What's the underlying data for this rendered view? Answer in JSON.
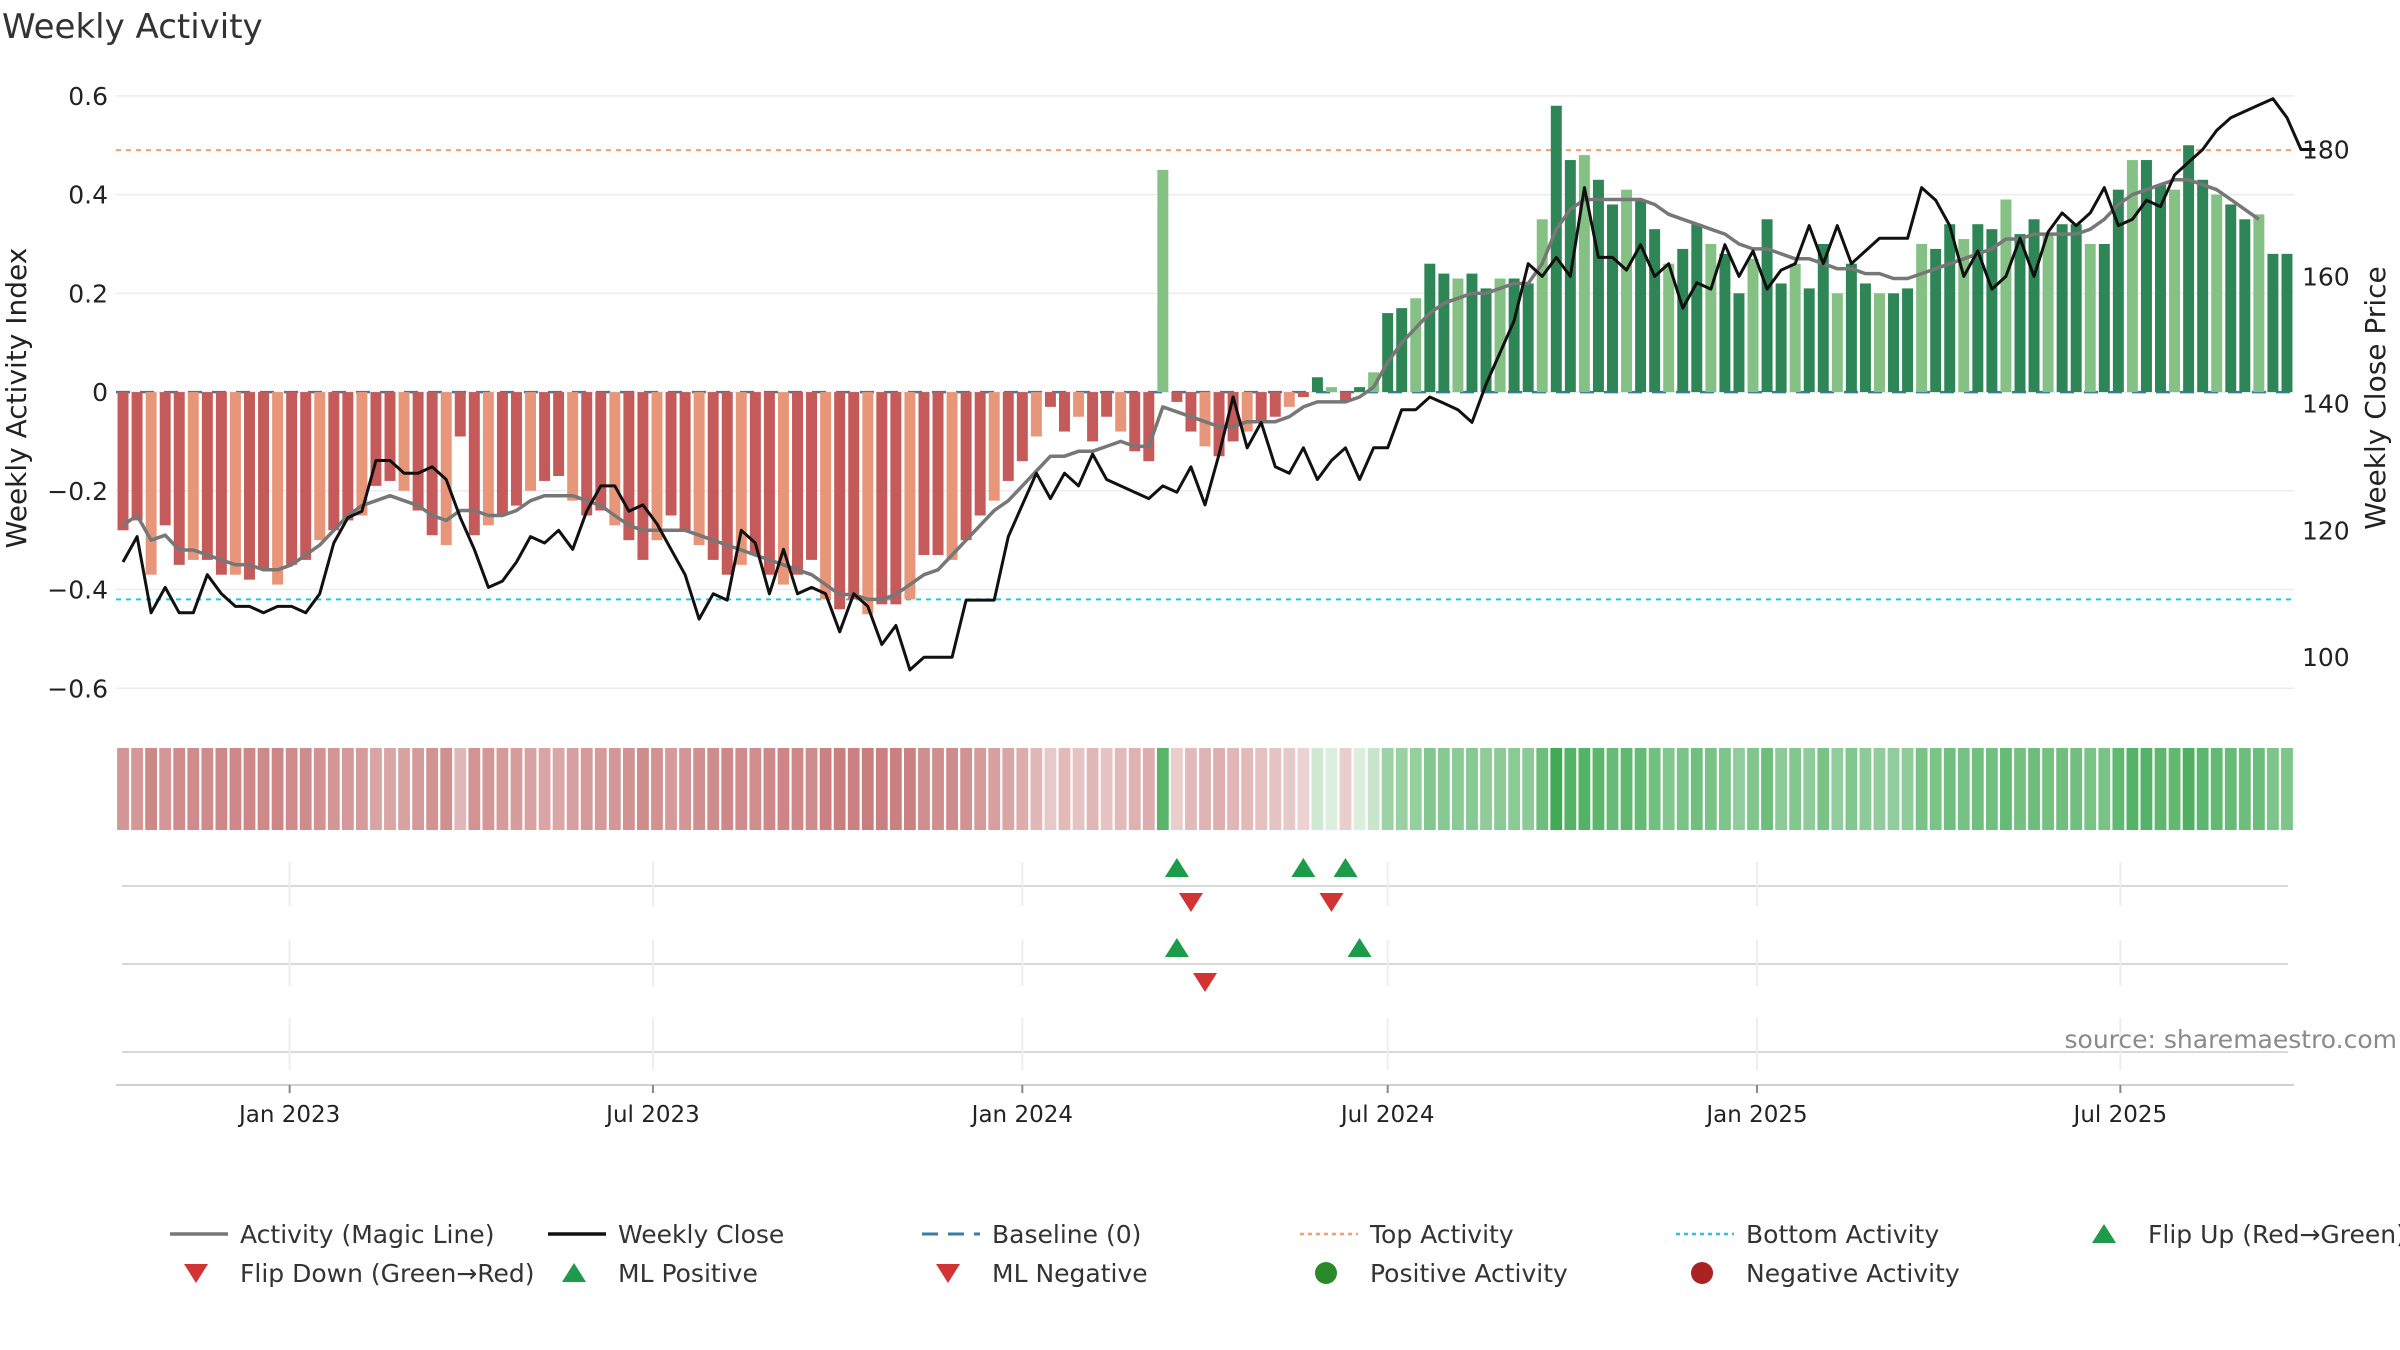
{
  "chart_data": {
    "type": "bar",
    "title": "Weekly Activity",
    "source": "source: sharemaestro.com",
    "y_left": {
      "label": "Weekly Activity Index",
      "range": [
        -0.64,
        0.62
      ],
      "ticks": [
        {
          "v": 0.6,
          "t": "0.6"
        },
        {
          "v": 0.4,
          "t": "0.4"
        },
        {
          "v": 0.2,
          "t": "0.2"
        },
        {
          "v": 0,
          "t": "0"
        },
        {
          "v": -0.2,
          "t": "−0.2"
        },
        {
          "v": -0.4,
          "t": "−0.4"
        },
        {
          "v": -0.6,
          "t": "−0.6"
        }
      ]
    },
    "y_right": {
      "label": "Weekly Close Price",
      "range": [
        92,
        190
      ],
      "ticks": [
        {
          "v": 180,
          "t": "180"
        },
        {
          "v": 160,
          "t": "160"
        },
        {
          "v": 140,
          "t": "140"
        },
        {
          "v": 120,
          "t": "120"
        },
        {
          "v": 100,
          "t": "100"
        }
      ]
    },
    "x_axis": {
      "start": "2022-10-10",
      "weeks": 157,
      "ticks": [
        {
          "date": "2023-01-01",
          "label": "Jan 2023"
        },
        {
          "date": "2023-07-01",
          "label": "Jul 2023"
        },
        {
          "date": "2024-01-01",
          "label": "Jan 2024"
        },
        {
          "date": "2024-07-01",
          "label": "Jul 2024"
        },
        {
          "date": "2025-01-01",
          "label": "Jan 2025"
        },
        {
          "date": "2025-07-01",
          "label": "Jul 2025"
        }
      ]
    },
    "grid": true,
    "reference_lines": {
      "baseline": 0,
      "top_activity": 0.49,
      "bottom_activity": -0.42
    },
    "activity": [
      -0.28,
      -0.26,
      -0.37,
      -0.27,
      -0.35,
      -0.34,
      -0.34,
      -0.37,
      -0.37,
      -0.38,
      -0.36,
      -0.39,
      -0.35,
      -0.34,
      -0.3,
      -0.28,
      -0.26,
      -0.25,
      -0.19,
      -0.18,
      -0.2,
      -0.24,
      -0.29,
      -0.31,
      -0.09,
      -0.29,
      -0.27,
      -0.25,
      -0.23,
      -0.2,
      -0.18,
      -0.17,
      -0.22,
      -0.25,
      -0.24,
      -0.27,
      -0.3,
      -0.34,
      -0.3,
      -0.25,
      -0.28,
      -0.31,
      -0.34,
      -0.37,
      -0.35,
      -0.33,
      -0.37,
      -0.39,
      -0.37,
      -0.34,
      -0.42,
      -0.44,
      -0.42,
      -0.45,
      -0.43,
      -0.43,
      -0.42,
      -0.33,
      -0.33,
      -0.34,
      -0.3,
      -0.25,
      -0.22,
      -0.18,
      -0.14,
      -0.09,
      -0.03,
      -0.08,
      -0.05,
      -0.1,
      -0.05,
      -0.08,
      -0.12,
      -0.14,
      0.45,
      -0.02,
      -0.08,
      -0.11,
      -0.13,
      -0.1,
      -0.08,
      -0.06,
      -0.05,
      -0.03,
      -0.01,
      0.03,
      0.01,
      -0.02,
      0.01,
      0.04,
      0.16,
      0.17,
      0.19,
      0.26,
      0.24,
      0.23,
      0.24,
      0.21,
      0.23,
      0.23,
      0.22,
      0.35,
      0.58,
      0.47,
      0.48,
      0.43,
      0.38,
      0.41,
      0.39,
      0.33,
      0.26,
      0.29,
      0.34,
      0.3,
      0.28,
      0.2,
      0.27,
      0.35,
      0.22,
      0.26,
      0.21,
      0.3,
      0.2,
      0.26,
      0.22,
      0.2,
      0.2,
      0.21,
      0.3,
      0.29,
      0.34,
      0.31,
      0.34,
      0.33,
      0.39,
      0.32,
      0.35,
      0.32,
      0.34,
      0.34,
      0.3,
      0.3,
      0.41,
      0.47,
      0.47,
      0.42,
      0.41,
      0.5,
      0.43,
      0.4,
      0.38,
      0.35,
      0.36,
      0.28,
      0.28
    ],
    "magic_line": [
      -0.27,
      -0.25,
      -0.3,
      -0.29,
      -0.32,
      -0.32,
      -0.33,
      -0.34,
      -0.35,
      -0.35,
      -0.36,
      -0.36,
      -0.35,
      -0.33,
      -0.31,
      -0.28,
      -0.25,
      -0.23,
      -0.22,
      -0.21,
      -0.22,
      -0.23,
      -0.25,
      -0.26,
      -0.24,
      -0.24,
      -0.25,
      -0.25,
      -0.24,
      -0.22,
      -0.21,
      -0.21,
      -0.21,
      -0.22,
      -0.23,
      -0.25,
      -0.27,
      -0.28,
      -0.28,
      -0.28,
      -0.28,
      -0.29,
      -0.3,
      -0.31,
      -0.32,
      -0.33,
      -0.34,
      -0.35,
      -0.36,
      -0.37,
      -0.39,
      -0.41,
      -0.41,
      -0.42,
      -0.42,
      -0.41,
      -0.39,
      -0.37,
      -0.36,
      -0.33,
      -0.3,
      -0.27,
      -0.24,
      -0.22,
      -0.19,
      -0.16,
      -0.13,
      -0.13,
      -0.12,
      -0.12,
      -0.11,
      -0.1,
      -0.11,
      -0.11,
      -0.03,
      -0.04,
      -0.05,
      -0.06,
      -0.07,
      -0.07,
      -0.06,
      -0.06,
      -0.06,
      -0.05,
      -0.03,
      -0.02,
      -0.02,
      -0.02,
      -0.01,
      0.01,
      0.06,
      0.1,
      0.13,
      0.16,
      0.18,
      0.19,
      0.2,
      0.2,
      0.21,
      0.22,
      0.22,
      0.26,
      0.33,
      0.37,
      0.39,
      0.39,
      0.39,
      0.39,
      0.39,
      0.38,
      0.36,
      0.35,
      0.34,
      0.33,
      0.32,
      0.3,
      0.29,
      0.29,
      0.28,
      0.27,
      0.27,
      0.26,
      0.25,
      0.25,
      0.24,
      0.24,
      0.23,
      0.23,
      0.24,
      0.25,
      0.26,
      0.27,
      0.28,
      0.29,
      0.31,
      0.31,
      0.32,
      0.32,
      0.32,
      0.32,
      0.33,
      0.35,
      0.38,
      0.4,
      0.41,
      0.42,
      0.43,
      0.43,
      0.42,
      0.41,
      0.39,
      0.37,
      0.35
    ],
    "close": [
      115,
      119,
      107,
      111,
      107,
      107,
      113,
      110,
      108,
      108,
      107,
      108,
      108,
      107,
      110,
      118,
      122,
      123,
      131,
      131,
      129,
      129,
      130,
      128,
      122,
      117,
      111,
      112,
      115,
      119,
      118,
      120,
      117,
      123,
      127,
      127,
      123,
      124,
      121,
      117,
      113,
      106,
      110,
      109,
      120,
      118,
      110,
      117,
      110,
      111,
      110,
      104,
      110,
      108,
      102,
      105,
      98,
      100,
      100,
      100,
      109,
      109,
      109,
      119,
      124,
      129,
      125,
      129,
      127,
      132,
      128,
      127,
      126,
      125,
      127,
      126,
      130,
      124,
      132,
      141,
      133,
      137,
      130,
      129,
      133,
      128,
      131,
      133,
      128,
      133,
      133,
      139,
      139,
      141,
      140,
      139,
      137,
      143,
      148,
      153,
      162,
      160,
      163,
      160,
      174,
      163,
      163,
      161,
      165,
      160,
      162,
      155,
      159,
      158,
      165,
      160,
      164,
      158,
      161,
      162,
      168,
      162,
      168,
      162,
      164,
      166,
      166,
      166,
      174,
      172,
      168,
      160,
      164,
      158,
      160,
      166,
      160,
      167,
      170,
      168,
      170,
      174,
      168,
      169,
      172,
      171,
      176,
      178,
      180,
      183,
      185,
      186,
      187,
      188,
      185,
      180,
      180
    ],
    "heat_strip": "per-week color intensity (red negative, green positive)",
    "signal_rows": {
      "flip": {
        "up": [
          75,
          84,
          87
        ],
        "down": [
          76,
          86
        ]
      },
      "ml": {
        "positive": [
          75,
          88
        ],
        "negative": [
          77
        ]
      },
      "activity_extremes": {
        "positive": [],
        "negative": []
      }
    },
    "colors": {
      "neg_dark": "#c45a5a",
      "neg_light": "#e8967a",
      "pos_dark": "#2e8555",
      "pos_light": "#85c085",
      "magic_line": "#777777",
      "close": "#111111",
      "baseline": "#3a7ca5",
      "top": "#f0a070",
      "bottom": "#26c6da",
      "flip_up": "#1e9b4a",
      "flip_down": "#d23434"
    },
    "legend": {
      "placement": "bottom",
      "items": [
        {
          "key": "magic",
          "label": "Activity (Magic Line)",
          "symbol": "line",
          "color": "#777777"
        },
        {
          "key": "close",
          "label": "Weekly Close",
          "symbol": "line",
          "color": "#111111"
        },
        {
          "key": "baseline",
          "label": "Baseline (0)",
          "symbol": "dash",
          "color": "#3a7ca5"
        },
        {
          "key": "top",
          "label": "Top Activity",
          "symbol": "dot",
          "color": "#f0a070"
        },
        {
          "key": "bottom",
          "label": "Bottom Activity",
          "symbol": "dot",
          "color": "#26c6da"
        },
        {
          "key": "flip_up",
          "label": "Flip Up (Red→Green)",
          "symbol": "tri-up",
          "color": "#1e9b4a"
        },
        {
          "key": "flip_down",
          "label": "Flip Down (Green→Red)",
          "symbol": "tri-down",
          "color": "#d23434"
        },
        {
          "key": "ml_pos",
          "label": "ML Positive",
          "symbol": "tri-up",
          "color": "#1e9b4a"
        },
        {
          "key": "ml_neg",
          "label": "ML Negative",
          "symbol": "tri-down",
          "color": "#d23434"
        },
        {
          "key": "pos_act",
          "label": "Positive Activity",
          "symbol": "circle",
          "color": "#2a8a2a"
        },
        {
          "key": "neg_act",
          "label": "Negative Activity",
          "symbol": "circle",
          "color": "#aa2222"
        }
      ]
    }
  }
}
